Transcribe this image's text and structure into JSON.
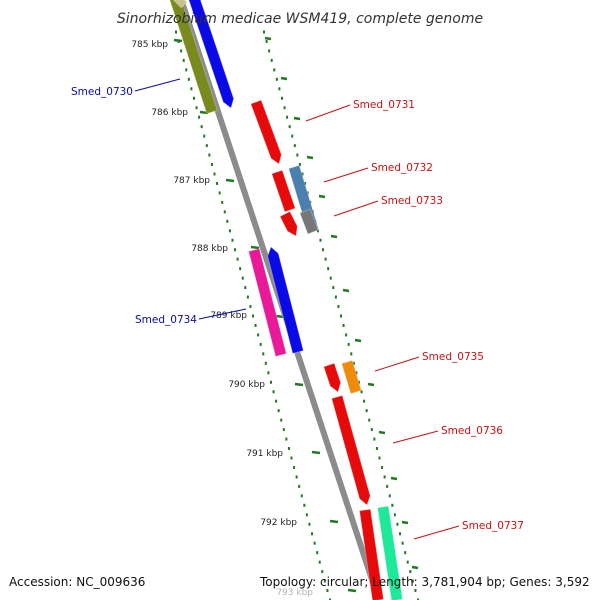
{
  "title": "Sinorhizobium medicae WSM419, complete genome",
  "footer": {
    "accession": "Accession: NC_009636",
    "summary": "Topology: circular; Length: 3,781,904 bp; Genes: 3,592"
  },
  "colors": {
    "backbone": "#8c8c8c",
    "tick_dots": "#1e7a1e",
    "forward_label": "#0a0aa8",
    "reverse_label": "#cc1010"
  },
  "ticks": [
    {
      "label": "785 kbp"
    },
    {
      "label": "786 kbp"
    },
    {
      "label": "787 kbp"
    },
    {
      "label": "788 kbp"
    },
    {
      "label": "789 kbp"
    },
    {
      "label": "790 kbp"
    },
    {
      "label": "791 kbp"
    },
    {
      "label": "792 kbp"
    },
    {
      "label": "793 kbp"
    }
  ],
  "genes": [
    {
      "name": "Smed_0730",
      "strand": "forward",
      "feature_color": "#7a8a1e",
      "cds_color": "#0a0ae6"
    },
    {
      "name": "Smed_0731",
      "strand": "reverse",
      "feature_color": "#e60a0a"
    },
    {
      "name": "Smed_0732",
      "strand": "reverse",
      "feature_color": "#4a7fb0"
    },
    {
      "name": "Smed_0733",
      "strand": "reverse",
      "feature_color": "#e60a0a"
    },
    {
      "name": "Smed_0734",
      "strand": "forward",
      "feature_color": "#e81a9a",
      "cds_color": "#0a0ae6"
    },
    {
      "name": "Smed_0735",
      "strand": "reverse",
      "feature_color": "#f08a0a"
    },
    {
      "name": "Smed_0736",
      "strand": "reverse",
      "feature_color": "#e60a0a"
    },
    {
      "name": "Smed_0737",
      "strand": "reverse",
      "feature_color": "#1ee89a"
    }
  ]
}
